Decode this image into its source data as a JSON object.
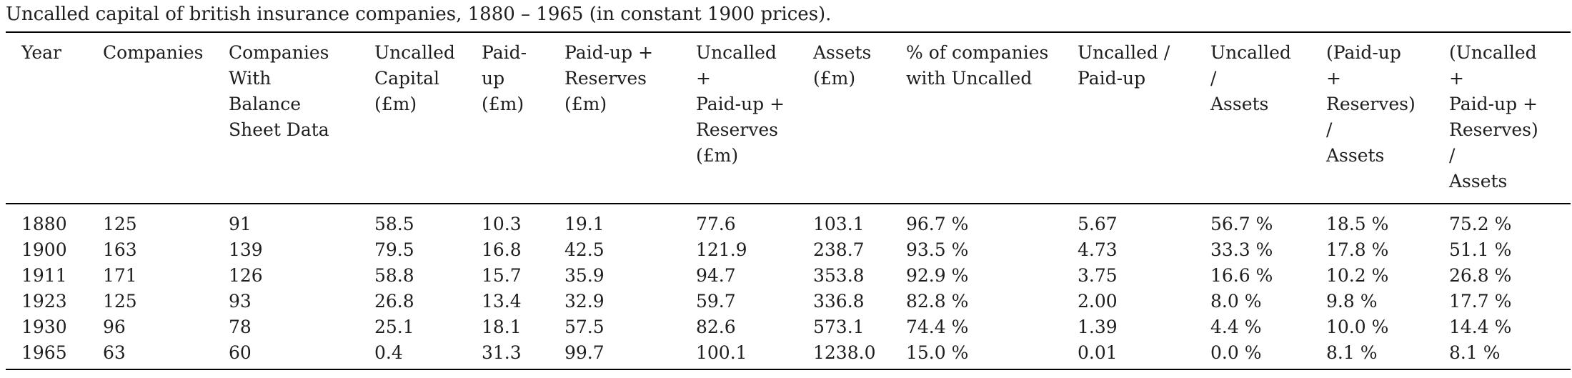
{
  "caption": "Uncalled capital of british insurance companies, 1880 – 1965 (in constant 1900 prices).",
  "columns": [
    [
      "Year"
    ],
    [
      "Companies"
    ],
    [
      "Companies",
      "With",
      "Balance",
      "Sheet Data"
    ],
    [
      "Uncalled",
      "Capital",
      "(£m)"
    ],
    [
      "Paid-",
      "up",
      "(£m)"
    ],
    [
      "Paid-up +",
      "Reserves",
      "(£m)"
    ],
    [
      "Uncalled",
      "+",
      "Paid-up +",
      "Reserves",
      "(£m)"
    ],
    [
      "Assets",
      "(£m)"
    ],
    [
      "% of companies",
      "with Uncalled"
    ],
    [
      "Uncalled /",
      "Paid-up"
    ],
    [
      "Uncalled",
      "/",
      "Assets"
    ],
    [
      "(Paid-up",
      "+",
      "Reserves)",
      "/",
      "Assets"
    ],
    [
      "(Uncalled",
      "+",
      "Paid-up +",
      "Reserves)",
      "/",
      "Assets"
    ]
  ],
  "rows": [
    [
      "1880",
      "125",
      "91",
      "58.5",
      "10.3",
      "19.1",
      "77.6",
      "103.1",
      "96.7 %",
      "5.67",
      "56.7 %",
      "18.5 %",
      "75.2 %"
    ],
    [
      "1900",
      "163",
      "139",
      "79.5",
      "16.8",
      "42.5",
      "121.9",
      "238.7",
      "93.5 %",
      "4.73",
      "33.3 %",
      "17.8 %",
      "51.1 %"
    ],
    [
      "1911",
      "171",
      "126",
      "58.8",
      "15.7",
      "35.9",
      "94.7",
      "353.8",
      "92.9 %",
      "3.75",
      "16.6 %",
      "10.2 %",
      "26.8 %"
    ],
    [
      "1923",
      "125",
      "93",
      "26.8",
      "13.4",
      "32.9",
      "59.7",
      "336.8",
      "82.8 %",
      "2.00",
      "8.0 %",
      "9.8 %",
      "17.7 %"
    ],
    [
      "1930",
      "96",
      "78",
      "25.1",
      "18.1",
      "57.5",
      "82.6",
      "573.1",
      "74.4 %",
      "1.39",
      "4.4 %",
      "10.0 %",
      "14.4 %"
    ],
    [
      "1965",
      "63",
      "60",
      "0.4",
      "31.3",
      "99.7",
      "100.1",
      "1238.0",
      "15.0 %",
      "0.01",
      "0.0 %",
      "8.1 %",
      "8.1 %"
    ]
  ]
}
